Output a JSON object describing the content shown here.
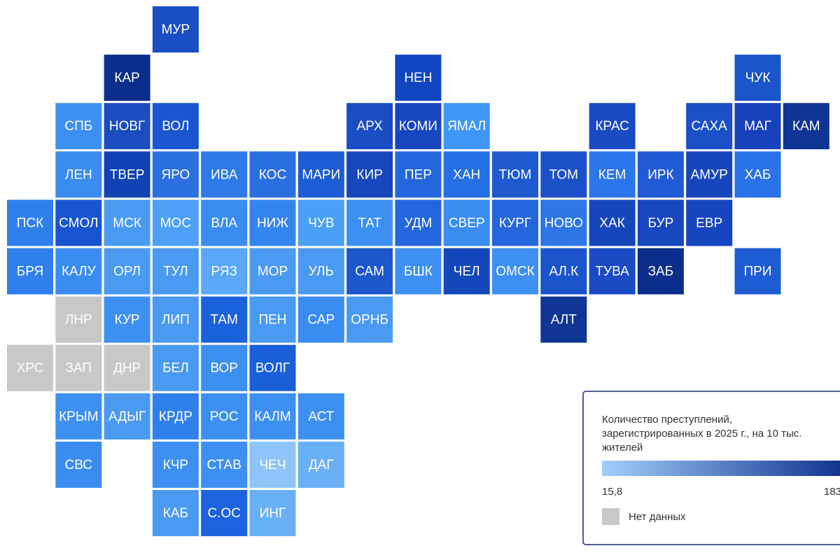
{
  "map": {
    "type": "tile-map",
    "tiles": [
      {
        "label": "МУР",
        "color": "#1a4fc4"
      },
      {
        "label": "КАР",
        "color": "#0b2e8a"
      },
      {
        "label": "НЕН",
        "color": "#1246c0"
      },
      {
        "label": "ЧУК",
        "color": "#1a55cc"
      },
      {
        "label": "СПБ",
        "color": "#3d8ff0"
      },
      {
        "label": "НОВГ",
        "color": "#1a4dc0"
      },
      {
        "label": "ВОЛ",
        "color": "#1b55cf"
      },
      {
        "label": "АРХ",
        "color": "#1a4dc4"
      },
      {
        "label": "КОМИ",
        "color": "#1846c0"
      },
      {
        "label": "ЯМАЛ",
        "color": "#3f97f5"
      },
      {
        "label": "КРАС",
        "color": "#1a4ac4"
      },
      {
        "label": "САХА",
        "color": "#1a4fc8"
      },
      {
        "label": "МАГ",
        "color": "#1741b8"
      },
      {
        "label": "КАМ",
        "color": "#0e3494"
      },
      {
        "label": "ЛЕН",
        "color": "#3a8cf0"
      },
      {
        "label": "ТВЕР",
        "color": "#1142b4"
      },
      {
        "label": "ЯРО",
        "color": "#2a70e0"
      },
      {
        "label": "ИВА",
        "color": "#2d7ae8"
      },
      {
        "label": "КОС",
        "color": "#2a6fe0"
      },
      {
        "label": "МАРИ",
        "color": "#1e5cd4"
      },
      {
        "label": "КИР",
        "color": "#1648bc"
      },
      {
        "label": "ПЕР",
        "color": "#2467dc"
      },
      {
        "label": "ХАН",
        "color": "#2470e4"
      },
      {
        "label": "ТЮМ",
        "color": "#1d5ad0"
      },
      {
        "label": "ТОМ",
        "color": "#1b50c8"
      },
      {
        "label": "КЕМ",
        "color": "#2a75ea"
      },
      {
        "label": "ИРК",
        "color": "#1f5bd4"
      },
      {
        "label": "АМУР",
        "color": "#1746bc"
      },
      {
        "label": "ХАБ",
        "color": "#2a72e8"
      },
      {
        "label": "ПСК",
        "color": "#2f80ec"
      },
      {
        "label": "СМОЛ",
        "color": "#1955d0"
      },
      {
        "label": "МСК",
        "color": "#4a9af2"
      },
      {
        "label": "МОС",
        "color": "#4da0f5"
      },
      {
        "label": "ВЛА",
        "color": "#3a8cf0"
      },
      {
        "label": "НИЖ",
        "color": "#3585ee"
      },
      {
        "label": "ЧУВ",
        "color": "#4aa0f5"
      },
      {
        "label": "ТАТ",
        "color": "#3d90f2"
      },
      {
        "label": "УДМ",
        "color": "#2467dc"
      },
      {
        "label": "СВЕР",
        "color": "#3a8cf0"
      },
      {
        "label": "КУРГ",
        "color": "#2466dc"
      },
      {
        "label": "НОВО",
        "color": "#2e76e6"
      },
      {
        "label": "ХАК",
        "color": "#1546bc"
      },
      {
        "label": "БУР",
        "color": "#1747be"
      },
      {
        "label": "ЕВР",
        "color": "#1645c0"
      },
      {
        "label": "БРЯ",
        "color": "#2f80ec"
      },
      {
        "label": "КАЛУ",
        "color": "#3a8cf0"
      },
      {
        "label": "ОРЛ",
        "color": "#4a9af2"
      },
      {
        "label": "ТУЛ",
        "color": "#4a9af2"
      },
      {
        "label": "РЯЗ",
        "color": "#5aa8f7"
      },
      {
        "label": "МОР",
        "color": "#4a9af2"
      },
      {
        "label": "УЛЬ",
        "color": "#4a9af2"
      },
      {
        "label": "САМ",
        "color": "#1c58cc"
      },
      {
        "label": "БШК",
        "color": "#3d90f2"
      },
      {
        "label": "ЧЕЛ",
        "color": "#1547bc"
      },
      {
        "label": "ОМСК",
        "color": "#3d90f2"
      },
      {
        "label": "АЛ.К",
        "color": "#1a55cc"
      },
      {
        "label": "ТУВА",
        "color": "#1a4ac4"
      },
      {
        "label": "ЗАБ",
        "color": "#0b2e8a"
      },
      {
        "label": "ПРИ",
        "color": "#1e5cd4"
      },
      {
        "label": "ЛНР",
        "color": "#c8c8c8"
      },
      {
        "label": "КУР",
        "color": "#3d90f2"
      },
      {
        "label": "ЛИП",
        "color": "#4a9af2"
      },
      {
        "label": "ТАМ",
        "color": "#1a62dc"
      },
      {
        "label": "ПЕН",
        "color": "#4a9af2"
      },
      {
        "label": "САР",
        "color": "#3a8cf0"
      },
      {
        "label": "ОРНБ",
        "color": "#4a9af2"
      },
      {
        "label": "АЛТ",
        "color": "#0f3595"
      },
      {
        "label": "ХРС",
        "color": "#c8c8c8"
      },
      {
        "label": "ЗАП",
        "color": "#c8c8c8"
      },
      {
        "label": "ДНР",
        "color": "#c8c8c8"
      },
      {
        "label": "БЕЛ",
        "color": "#4a9af2"
      },
      {
        "label": "ВОР",
        "color": "#3d90f2"
      },
      {
        "label": "ВОЛГ",
        "color": "#1a5ed8"
      },
      {
        "label": "КРЫМ",
        "color": "#3d90f2"
      },
      {
        "label": "АДЫГ",
        "color": "#4a9af2"
      },
      {
        "label": "КРДР",
        "color": "#2f80ec"
      },
      {
        "label": "РОС",
        "color": "#3d90f2"
      },
      {
        "label": "КАЛМ",
        "color": "#3d90f2"
      },
      {
        "label": "АСТ",
        "color": "#3d90f2"
      },
      {
        "label": "СВС",
        "color": "#3a8cf0"
      },
      {
        "label": "КЧР",
        "color": "#3d90f2"
      },
      {
        "label": "СТАВ",
        "color": "#3d90f2"
      },
      {
        "label": "ЧЕЧ",
        "color": "#8dc4fa"
      },
      {
        "label": "ДАГ",
        "color": "#6ab0f7"
      },
      {
        "label": "КАБ",
        "color": "#4a9af2"
      },
      {
        "label": "С.ОС",
        "color": "#1d63de"
      },
      {
        "label": "ИНГ",
        "color": "#6ab0f7"
      }
    ]
  },
  "legend": {
    "title_lines": [
      "Количество преступлений,",
      "зарегистрированных в 2025 г., на 10 тыс.",
      "жителей"
    ],
    "min_label": "15,8",
    "max_label": "183",
    "no_data_label": "Нет данных",
    "color_low": "#a3cffb",
    "color_high": "#0b2a8a",
    "no_data_color": "#c8c8c8"
  }
}
